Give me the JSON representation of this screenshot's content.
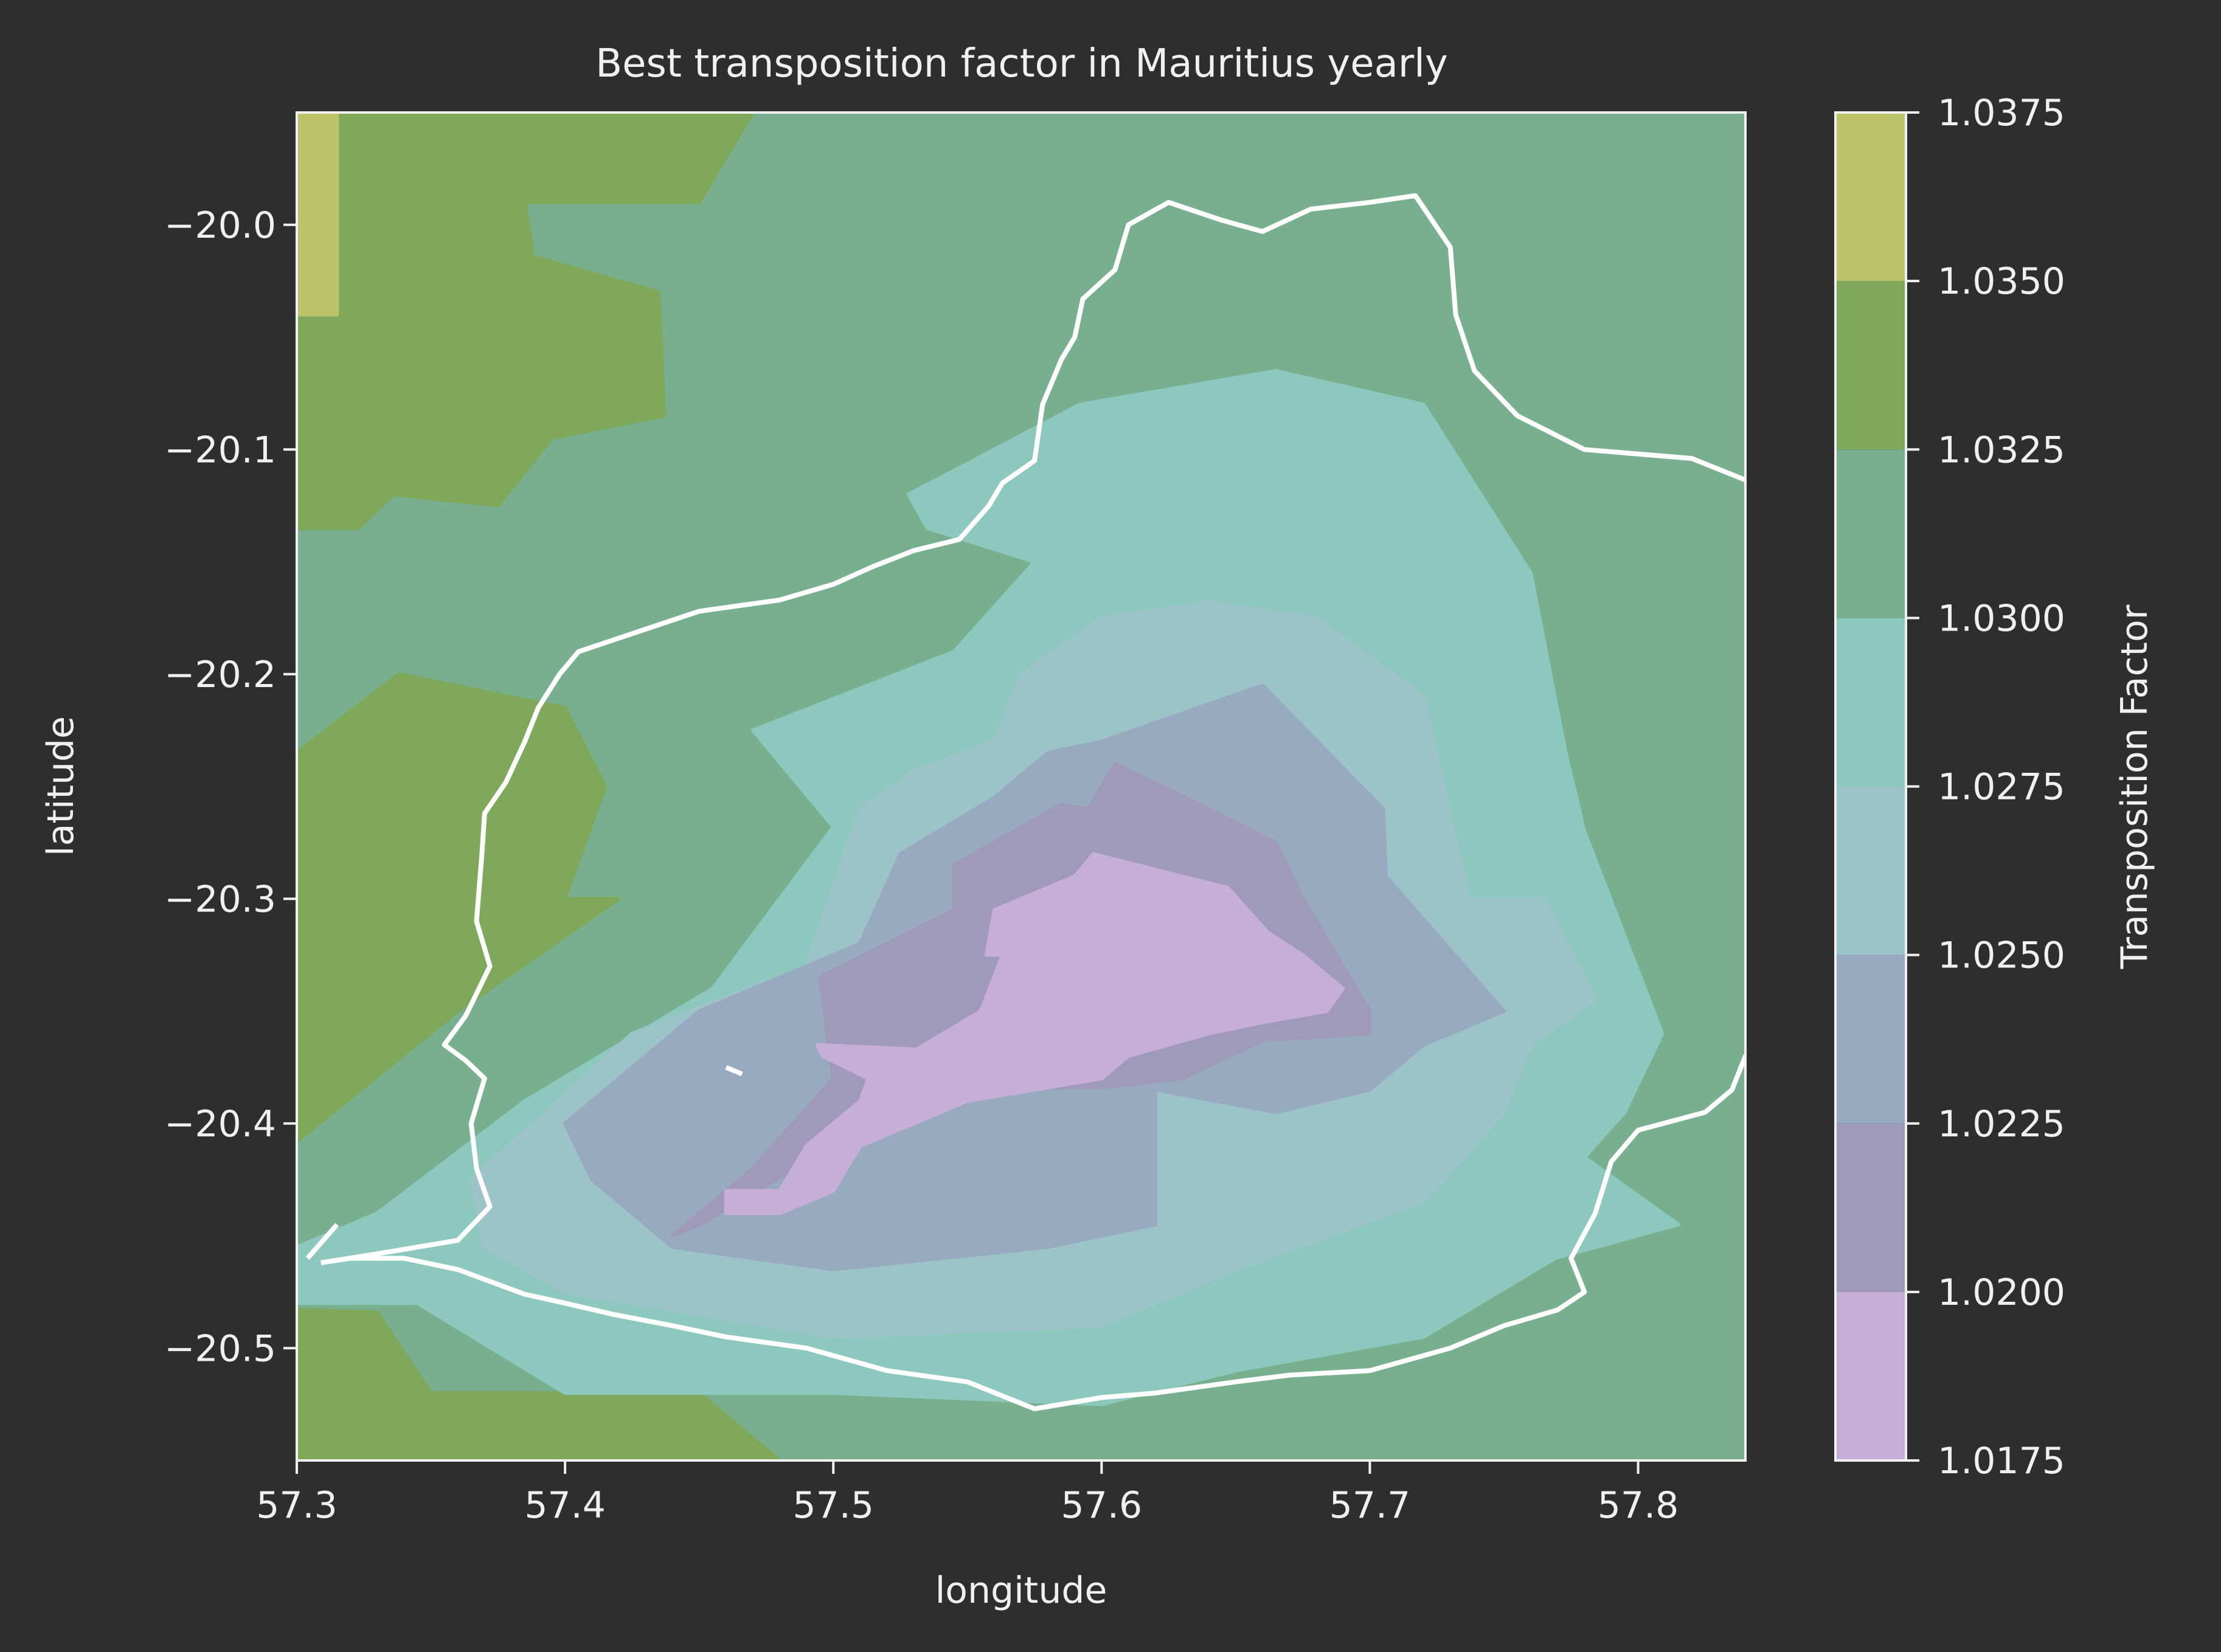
{
  "chart_data": {
    "type": "contour",
    "title": "Best transposition factor in Mauritius yearly",
    "xlabel": "longitude",
    "ylabel": "latitude",
    "xlim": [
      57.3,
      57.84
    ],
    "ylim": [
      -20.55,
      -19.95
    ],
    "xticks": [
      57.3,
      57.4,
      57.5,
      57.6,
      57.7,
      57.8
    ],
    "xtick_labels": [
      "57.3",
      "57.4",
      "57.5",
      "57.6",
      "57.7",
      "57.8"
    ],
    "yticks": [
      -20.0,
      -20.1,
      -20.2,
      -20.3,
      -20.4,
      -20.5
    ],
    "ytick_labels": [
      "−20.0",
      "−20.1",
      "−20.2",
      "−20.3",
      "−20.4",
      "−20.5"
    ],
    "colorbar": {
      "label": "Transposition Factor",
      "levels": [
        1.0175,
        1.02,
        1.0225,
        1.025,
        1.0275,
        1.03,
        1.0325,
        1.035,
        1.0375
      ],
      "tick_labels": [
        "1.0175",
        "1.0200",
        "1.0225",
        "1.0250",
        "1.0275",
        "1.0300",
        "1.0325",
        "1.0350",
        "1.0375"
      ],
      "colors": [
        "#c6aed6",
        "#9f99ba",
        "#98aac0",
        "#9cc3c8",
        "#8cc8bd",
        "#78b08f",
        "#7fa85a",
        "#bdc36a"
      ]
    },
    "regions": [
      {
        "level_index": 5,
        "polygon": [
          [
            57.3,
            -19.95
          ],
          [
            57.84,
            -19.95
          ],
          [
            57.84,
            -20.55
          ],
          [
            57.3,
            -20.55
          ]
        ]
      },
      {
        "level_index": 6,
        "polygon": [
          [
            57.3,
            -19.95
          ],
          [
            57.47,
            -19.95
          ],
          [
            57.45,
            -19.99
          ],
          [
            57.385,
            -19.99
          ],
          [
            57.388,
            -20.012
          ],
          [
            57.385,
            -20.013
          ],
          [
            57.435,
            -20.03
          ],
          [
            57.437,
            -20.085
          ],
          [
            57.395,
            -20.095
          ],
          [
            57.375,
            -20.125
          ],
          [
            57.336,
            -20.12
          ],
          [
            57.323,
            -20.135
          ],
          [
            57.3,
            -20.135
          ]
        ]
      },
      {
        "level_index": 6,
        "polygon": [
          [
            57.3,
            -20.235
          ],
          [
            57.338,
            -20.2
          ],
          [
            57.4,
            -20.215
          ],
          [
            57.415,
            -20.25
          ],
          [
            57.4,
            -20.3
          ],
          [
            57.42,
            -20.3
          ],
          [
            57.36,
            -20.35
          ],
          [
            57.3,
            -20.408
          ]
        ]
      },
      {
        "level_index": 6,
        "polygon": [
          [
            57.3,
            -20.483
          ],
          [
            57.33,
            -20.484
          ],
          [
            57.35,
            -20.52
          ],
          [
            57.45,
            -20.52
          ],
          [
            57.48,
            -20.55
          ],
          [
            57.3,
            -20.55
          ]
        ]
      },
      {
        "level_index": 7,
        "polygon": [
          [
            57.3,
            -19.95
          ],
          [
            57.315,
            -19.95
          ],
          [
            57.315,
            -20.04
          ],
          [
            57.3,
            -20.04
          ]
        ]
      },
      {
        "level_index": 4,
        "polygon": [
          [
            57.3,
            -20.455
          ],
          [
            57.33,
            -20.44
          ],
          [
            57.385,
            -20.39
          ],
          [
            57.455,
            -20.34
          ],
          [
            57.5,
            -20.268
          ],
          [
            57.47,
            -20.225
          ],
          [
            57.545,
            -20.19
          ],
          [
            57.575,
            -20.15
          ],
          [
            57.535,
            -20.135
          ],
          [
            57.528,
            -20.12
          ],
          [
            57.592,
            -20.08
          ],
          [
            57.665,
            -20.065
          ],
          [
            57.72,
            -20.08
          ],
          [
            57.76,
            -20.155
          ],
          [
            57.773,
            -20.235
          ],
          [
            57.78,
            -20.27
          ],
          [
            57.809,
            -20.36
          ],
          [
            57.795,
            -20.395
          ],
          [
            57.78,
            -20.415
          ],
          [
            57.815,
            -20.445
          ],
          [
            57.769,
            -20.46
          ],
          [
            57.72,
            -20.495
          ],
          [
            57.65,
            -20.51
          ],
          [
            57.6,
            -20.525
          ],
          [
            57.5,
            -20.52
          ],
          [
            57.4,
            -20.52
          ],
          [
            57.345,
            -20.48
          ],
          [
            57.3,
            -20.48
          ]
        ]
      },
      {
        "level_index": 3,
        "polygon": [
          [
            57.365,
            -20.425
          ],
          [
            57.425,
            -20.36
          ],
          [
            57.49,
            -20.33
          ],
          [
            57.51,
            -20.26
          ],
          [
            57.53,
            -20.243
          ],
          [
            57.56,
            -20.23
          ],
          [
            57.57,
            -20.2
          ],
          [
            57.6,
            -20.175
          ],
          [
            57.64,
            -20.168
          ],
          [
            57.68,
            -20.175
          ],
          [
            57.72,
            -20.21
          ],
          [
            57.737,
            -20.3
          ],
          [
            57.765,
            -20.3
          ],
          [
            57.784,
            -20.345
          ],
          [
            57.76,
            -20.365
          ],
          [
            57.75,
            -20.395
          ],
          [
            57.72,
            -20.435
          ],
          [
            57.65,
            -20.465
          ],
          [
            57.6,
            -20.49
          ],
          [
            57.5,
            -20.495
          ],
          [
            57.4,
            -20.475
          ],
          [
            57.37,
            -20.455
          ]
        ]
      },
      {
        "level_index": 2,
        "polygon": [
          [
            57.4,
            -20.4
          ],
          [
            57.45,
            -20.35
          ],
          [
            57.51,
            -20.32
          ],
          [
            57.525,
            -20.28
          ],
          [
            57.56,
            -20.255
          ],
          [
            57.58,
            -20.235
          ],
          [
            57.6,
            -20.23
          ],
          [
            57.66,
            -20.205
          ],
          [
            57.705,
            -20.26
          ],
          [
            57.706,
            -20.29
          ],
          [
            57.75,
            -20.35
          ],
          [
            57.72,
            -20.365
          ],
          [
            57.7,
            -20.385
          ],
          [
            57.665,
            -20.395
          ],
          [
            57.62,
            -20.385
          ],
          [
            57.62,
            -20.42
          ],
          [
            57.62,
            -20.445
          ],
          [
            57.58,
            -20.455
          ],
          [
            57.5,
            -20.465
          ],
          [
            57.44,
            -20.455
          ],
          [
            57.41,
            -20.425
          ]
        ]
      },
      {
        "level_index": 1,
        "polygon": [
          [
            57.44,
            -20.45
          ],
          [
            57.47,
            -20.42
          ],
          [
            57.5,
            -20.38
          ],
          [
            57.495,
            -20.335
          ],
          [
            57.545,
            -20.305
          ],
          [
            57.545,
            -20.285
          ],
          [
            57.585,
            -20.258
          ],
          [
            57.595,
            -20.26
          ],
          [
            57.605,
            -20.24
          ],
          [
            57.64,
            -20.26
          ],
          [
            57.665,
            -20.275
          ],
          [
            57.675,
            -20.3
          ],
          [
            57.7,
            -20.35
          ],
          [
            57.7,
            -20.36
          ],
          [
            57.66,
            -20.363
          ],
          [
            57.63,
            -20.38
          ],
          [
            57.6,
            -20.384
          ],
          [
            57.57,
            -20.384
          ],
          [
            57.53,
            -20.39
          ],
          [
            57.5,
            -20.41
          ],
          [
            57.45,
            -20.445
          ]
        ]
      },
      {
        "level_index": 0,
        "polygon": [
          [
            57.46,
            -20.44
          ],
          [
            57.46,
            -20.43
          ],
          [
            57.48,
            -20.43
          ],
          [
            57.49,
            -20.41
          ],
          [
            57.51,
            -20.39
          ],
          [
            57.513,
            -20.38
          ],
          [
            57.496,
            -20.37
          ],
          [
            57.494,
            -20.365
          ],
          [
            57.531,
            -20.367
          ],
          [
            57.555,
            -20.35
          ],
          [
            57.563,
            -20.325
          ],
          [
            57.557,
            -20.325
          ],
          [
            57.56,
            -20.305
          ],
          [
            57.59,
            -20.29
          ],
          [
            57.597,
            -20.28
          ],
          [
            57.63,
            -20.29
          ],
          [
            57.647,
            -20.295
          ],
          [
            57.662,
            -20.315
          ],
          [
            57.675,
            -20.325
          ],
          [
            57.69,
            -20.34
          ],
          [
            57.684,
            -20.35
          ],
          [
            57.66,
            -20.355
          ],
          [
            57.64,
            -20.36
          ],
          [
            57.61,
            -20.37
          ],
          [
            57.6,
            -20.38
          ],
          [
            57.55,
            -20.39
          ],
          [
            57.53,
            -20.4
          ],
          [
            57.51,
            -20.41
          ],
          [
            57.5,
            -20.43
          ],
          [
            57.48,
            -20.44
          ]
        ]
      }
    ],
    "coastline_color": "#ffffff",
    "coastline": [
      [
        57.309,
        -20.462
      ],
      [
        57.33,
        -20.458
      ],
      [
        57.36,
        -20.452
      ],
      [
        57.372,
        -20.437
      ],
      [
        57.367,
        -20.42
      ],
      [
        57.365,
        -20.4
      ],
      [
        57.37,
        -20.38
      ],
      [
        57.363,
        -20.372
      ],
      [
        57.355,
        -20.365
      ],
      [
        57.363,
        -20.352
      ],
      [
        57.372,
        -20.33
      ],
      [
        57.367,
        -20.31
      ],
      [
        57.369,
        -20.28
      ],
      [
        57.37,
        -20.262
      ],
      [
        57.378,
        -20.248
      ],
      [
        57.385,
        -20.23
      ],
      [
        57.39,
        -20.215
      ],
      [
        57.398,
        -20.2
      ],
      [
        57.405,
        -20.19
      ],
      [
        57.43,
        -20.18
      ],
      [
        57.45,
        -20.172
      ],
      [
        57.48,
        -20.167
      ],
      [
        57.5,
        -20.16
      ],
      [
        57.515,
        -20.152
      ],
      [
        57.53,
        -20.145
      ],
      [
        57.547,
        -20.14
      ],
      [
        57.558,
        -20.125
      ],
      [
        57.563,
        -20.115
      ],
      [
        57.575,
        -20.105
      ],
      [
        57.578,
        -20.08
      ],
      [
        57.585,
        -20.06
      ],
      [
        57.59,
        -20.05
      ],
      [
        57.593,
        -20.033
      ],
      [
        57.605,
        -20.02
      ],
      [
        57.61,
        -20.0
      ],
      [
        57.625,
        -19.99
      ],
      [
        57.645,
        -19.998
      ],
      [
        57.66,
        -20.003
      ],
      [
        57.678,
        -19.993
      ],
      [
        57.7,
        -19.99
      ],
      [
        57.717,
        -19.987
      ],
      [
        57.73,
        -20.01
      ],
      [
        57.732,
        -20.04
      ],
      [
        57.739,
        -20.065
      ],
      [
        57.755,
        -20.085
      ],
      [
        57.78,
        -20.1
      ],
      [
        57.82,
        -20.104
      ],
      [
        57.843,
        -20.115
      ],
      [
        57.848,
        -20.14
      ],
      [
        57.855,
        -20.16
      ],
      [
        57.857,
        -20.18
      ],
      [
        57.862,
        -20.2
      ],
      [
        57.877,
        -20.225
      ],
      [
        57.88,
        -20.255
      ],
      [
        57.875,
        -20.27
      ],
      [
        57.87,
        -20.295
      ],
      [
        57.868,
        -20.32
      ],
      [
        57.86,
        -20.345
      ],
      [
        57.855,
        -20.36
      ],
      [
        57.84,
        -20.37
      ],
      [
        57.835,
        -20.385
      ],
      [
        57.825,
        -20.395
      ],
      [
        57.8,
        -20.403
      ],
      [
        57.79,
        -20.417
      ],
      [
        57.784,
        -20.44
      ],
      [
        57.775,
        -20.46
      ],
      [
        57.78,
        -20.475
      ],
      [
        57.77,
        -20.483
      ],
      [
        57.75,
        -20.49
      ],
      [
        57.73,
        -20.5
      ],
      [
        57.7,
        -20.51
      ],
      [
        57.67,
        -20.512
      ],
      [
        57.65,
        -20.515
      ],
      [
        57.62,
        -20.52
      ],
      [
        57.6,
        -20.522
      ],
      [
        57.575,
        -20.527
      ],
      [
        57.55,
        -20.515
      ],
      [
        57.52,
        -20.51
      ],
      [
        57.49,
        -20.5
      ],
      [
        57.46,
        -20.495
      ],
      [
        57.44,
        -20.49
      ],
      [
        57.418,
        -20.485
      ],
      [
        57.4,
        -20.48
      ],
      [
        57.385,
        -20.476
      ],
      [
        57.36,
        -20.465
      ],
      [
        57.34,
        -20.46
      ],
      [
        57.32,
        -20.46
      ],
      [
        57.309,
        -20.462
      ]
    ],
    "coastline_fragments": [
      [
        [
          57.46,
          -20.375
        ],
        [
          57.466,
          -20.378
        ]
      ],
      [
        [
          57.304,
          -20.46
        ],
        [
          57.315,
          -20.445
        ]
      ]
    ]
  }
}
